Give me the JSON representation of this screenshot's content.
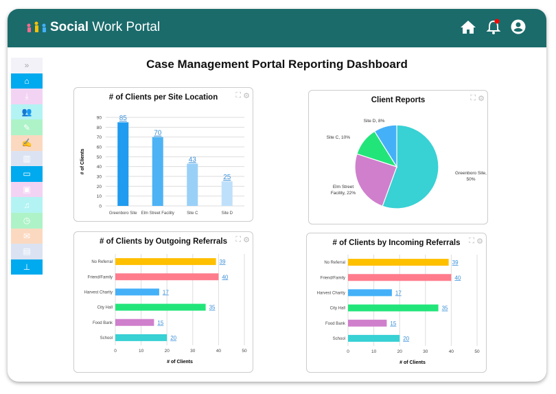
{
  "header": {
    "brand_bold": "Social",
    "brand_rest": " Work Portal",
    "icons": [
      "home-icon",
      "bell-icon",
      "user-account-icon"
    ],
    "notification_color": "#ff0000"
  },
  "sidebar": {
    "items": [
      {
        "icon": "expand-chevrons-icon",
        "bg": "#f2f2f8",
        "fg": "#aaa",
        "glyph": "»"
      },
      {
        "icon": "home-icon",
        "bg": "#00aaee",
        "fg": "#fff",
        "glyph": "⌂"
      },
      {
        "icon": "download-icon",
        "bg": "#f3d3f3",
        "fg": "#fff",
        "glyph": "⤓"
      },
      {
        "icon": "users-icon",
        "bg": "#b3f3f3",
        "fg": "#fff",
        "glyph": "👥"
      },
      {
        "icon": "calendar-edit-icon",
        "bg": "#aef3c8",
        "fg": "#fff",
        "glyph": "✎"
      },
      {
        "icon": "user-edit-icon",
        "bg": "#fbd9c0",
        "fg": "#fff",
        "glyph": "✍"
      },
      {
        "icon": "bar-chart-icon",
        "bg": "#dbe3f3",
        "fg": "#fff",
        "glyph": "▥"
      },
      {
        "icon": "folder-icon",
        "bg": "#00aaee",
        "fg": "#fff",
        "glyph": "▭"
      },
      {
        "icon": "contact-card-icon",
        "bg": "#f3d3f3",
        "fg": "#fff",
        "glyph": "▣"
      },
      {
        "icon": "bell-icon",
        "bg": "#b3f3f3",
        "fg": "#fff",
        "glyph": "♫"
      },
      {
        "icon": "calendar-clock-icon",
        "bg": "#aef3c8",
        "fg": "#fff",
        "glyph": "◷"
      },
      {
        "icon": "mail-icon",
        "bg": "#fbd9c0",
        "fg": "#fff",
        "glyph": "✉"
      },
      {
        "icon": "id-badge-icon",
        "bg": "#dbe3f3",
        "fg": "#fff",
        "glyph": "▤"
      },
      {
        "icon": "org-chart-icon",
        "bg": "#00aaee",
        "fg": "#fff",
        "glyph": "⊥"
      }
    ]
  },
  "page": {
    "title": "Case Management Portal Reporting Dashboard"
  },
  "chart_data": [
    {
      "type": "bar",
      "title": "# of Clients per Site Location",
      "ylabel": "# of Clients",
      "xlabel": "",
      "categories": [
        "Greenboro Site",
        "Elm Street Facility",
        "Site C",
        "Site D"
      ],
      "values": [
        85,
        70,
        43,
        25
      ],
      "ylim": [
        0,
        90
      ],
      "yticks": [
        0,
        10,
        20,
        30,
        40,
        50,
        60,
        70,
        80,
        90
      ],
      "colors": [
        "#1f9bf0",
        "#4db3f5",
        "#99d0f8",
        "#bfe0fa"
      ],
      "grid": true
    },
    {
      "type": "pie",
      "title": "Client Reports",
      "categories": [
        "Greenboro Site",
        "Elm Street Facility",
        "Site C",
        "Site D"
      ],
      "values": [
        50,
        22,
        10,
        8
      ],
      "labels": [
        "Greenboro Site, 50%",
        "Elm Street Facility, 22%",
        "Site C, 10%",
        "Site D, 8%"
      ],
      "colors": [
        "#38d1d4",
        "#cf7fcc",
        "#22e57a",
        "#44b0f8"
      ]
    },
    {
      "type": "bar",
      "orientation": "horizontal",
      "title": "# of Clients by Outgoing Referrals",
      "xlabel": "# of Clients",
      "categories": [
        "No Referral",
        "Friend/Family",
        "Harvest Charity",
        "City Hall",
        "Food Bank",
        "School"
      ],
      "values": [
        39,
        40,
        17,
        35,
        15,
        20
      ],
      "xlim": [
        0,
        50
      ],
      "xticks": [
        0,
        10,
        20,
        30,
        40,
        50
      ],
      "colors": [
        "#ffc000",
        "#ff7c8c",
        "#44b0f8",
        "#22e57a",
        "#cf7fcc",
        "#38d1d4"
      ],
      "grid": true
    },
    {
      "type": "bar",
      "orientation": "horizontal",
      "title": "# of Clients by Incoming Referrals",
      "xlabel": "# of Clients",
      "categories": [
        "No Referral",
        "Friend/Family",
        "Harvest Charity",
        "City Hall",
        "Food Bank",
        "School"
      ],
      "values": [
        39,
        40,
        17,
        35,
        15,
        20
      ],
      "xlim": [
        0,
        50
      ],
      "xticks": [
        0,
        10,
        20,
        30,
        40,
        50
      ],
      "colors": [
        "#ffc000",
        "#ff7c8c",
        "#44b0f8",
        "#22e57a",
        "#cf7fcc",
        "#38d1d4"
      ],
      "grid": true
    }
  ]
}
